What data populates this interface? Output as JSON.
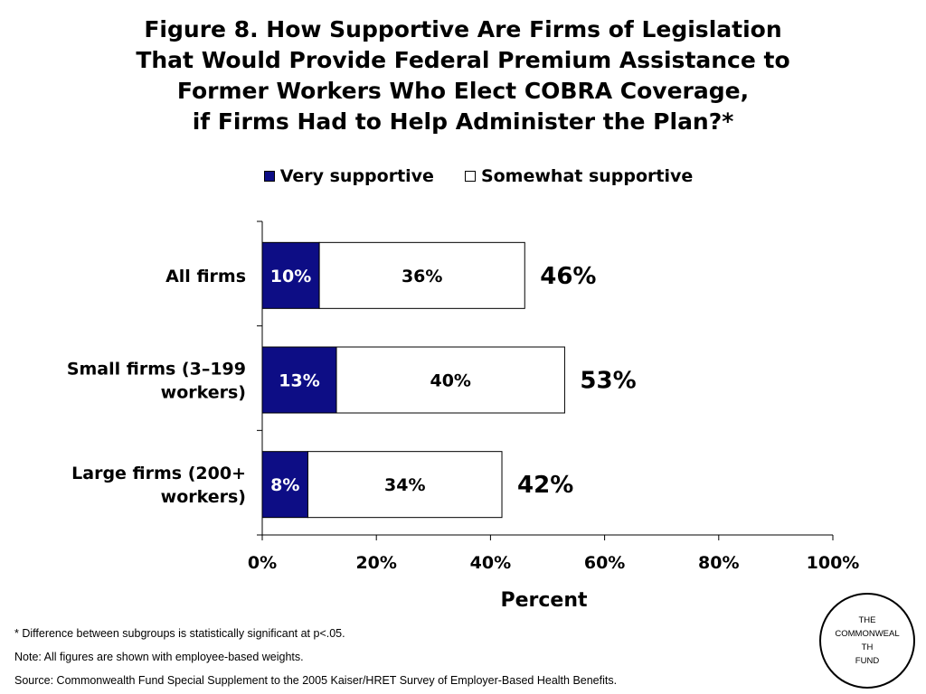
{
  "title_lines": [
    "Figure 8. How Supportive Are Firms of Legislation",
    "That Would Provide Federal Premium Assistance to",
    "Former Workers Who Elect COBRA Coverage,",
    "if Firms Had to Help Administer the Plan?*"
  ],
  "legend": {
    "very": "Very supportive",
    "somewhat": "Somewhat supportive"
  },
  "colors": {
    "very": "#0d0d85",
    "somewhat": "#ffffff",
    "very_label": "#ffffff",
    "somewhat_label": "#000000"
  },
  "chart_data": {
    "type": "bar",
    "orientation": "horizontal",
    "stacked": true,
    "categories": [
      [
        "All firms"
      ],
      [
        "Small firms (3–199",
        "workers)"
      ],
      [
        "Large firms (200+",
        "workers)"
      ]
    ],
    "series": [
      {
        "name": "Very supportive",
        "values": [
          10,
          13,
          8
        ],
        "labels": [
          "10%",
          "13%",
          "8%"
        ]
      },
      {
        "name": "Somewhat supportive",
        "values": [
          36,
          40,
          34
        ],
        "labels": [
          "36%",
          "40%",
          "34%"
        ]
      }
    ],
    "totals": [
      "46%",
      "53%",
      "42%"
    ],
    "xlim": [
      0,
      100
    ],
    "xticks": [
      0,
      20,
      40,
      60,
      80,
      100
    ],
    "xtick_labels": [
      "0%",
      "20%",
      "40%",
      "60%",
      "80%",
      "100%"
    ],
    "xlabel": "Percent",
    "legend_position": "top",
    "grid": false
  },
  "footnotes": [
    "* Difference between subgroups is statistically significant at p<.05.",
    "Note: All figures are shown with employee-based weights.",
    "Source: Commonwealth Fund Special Supplement to the 2005 Kaiser/HRET Survey of Employer-Based Health Benefits."
  ],
  "logo_lines": [
    "THE",
    "COMMONWEALTH",
    "FUND"
  ]
}
